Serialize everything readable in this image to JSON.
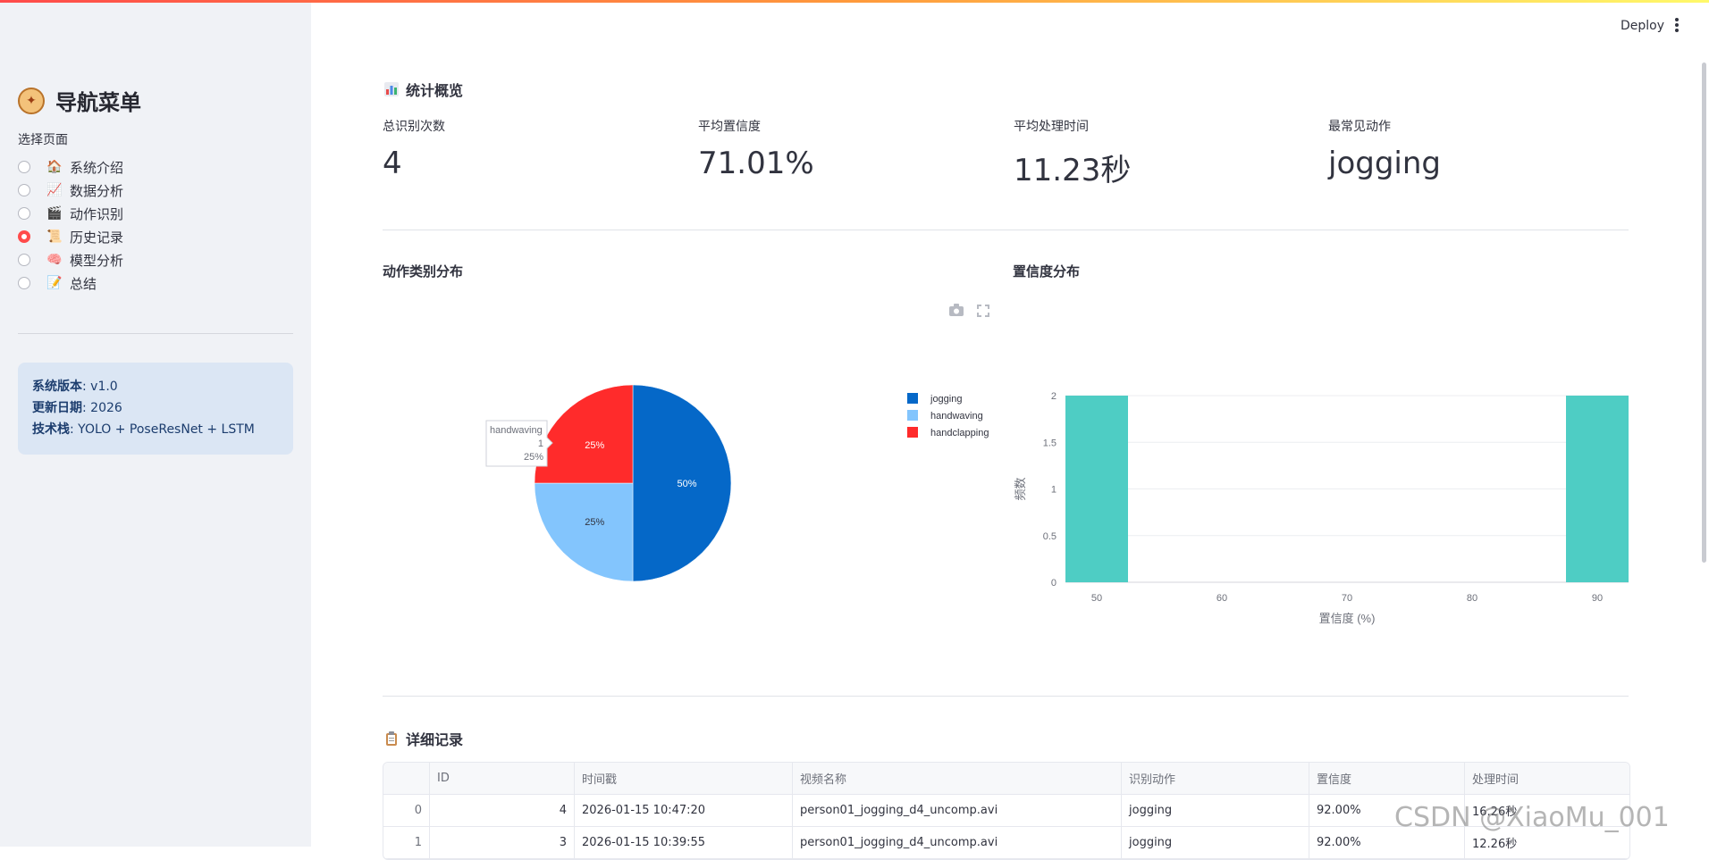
{
  "sidebar": {
    "title": "导航菜单",
    "select_label": "选择页面",
    "items": [
      {
        "label": "系统介绍",
        "icon": "house-icon",
        "emoji": "🏠",
        "selected": false
      },
      {
        "label": "数据分析",
        "icon": "chart-increasing-icon",
        "emoji": "📈",
        "selected": false
      },
      {
        "label": "动作识别",
        "icon": "clapper-board-icon",
        "emoji": "🎬",
        "selected": false
      },
      {
        "label": "历史记录",
        "icon": "scroll-icon",
        "emoji": "📜",
        "selected": true
      },
      {
        "label": "模型分析",
        "icon": "brain-icon",
        "emoji": "🧠",
        "selected": false
      },
      {
        "label": "总结",
        "icon": "memo-icon",
        "emoji": "📝",
        "selected": false
      }
    ],
    "info": {
      "version_key": "系统版本",
      "version_val": ": v1.0",
      "date_key": "更新日期",
      "date_val": ": 2026",
      "stack_key": "技术栈",
      "stack_val": ": YOLO + PoseResNet + LSTM"
    }
  },
  "header": {
    "deploy_label": "Deploy"
  },
  "stats": {
    "title": "统计概览",
    "metrics": [
      {
        "label": "总识别次数",
        "value": "4"
      },
      {
        "label": "平均置信度",
        "value": "71.01%"
      },
      {
        "label": "平均处理时间",
        "value": "11.23秒"
      },
      {
        "label": "最常见动作",
        "value": "jogging"
      }
    ]
  },
  "pie_title": "动作类别分布",
  "bar_title": "置信度分布",
  "pie_tooltip": {
    "name": "handwaving",
    "count": "1",
    "pct": "25%"
  },
  "chart_data": [
    {
      "type": "pie",
      "title": "动作类别分布",
      "labels": [
        "jogging",
        "handwaving",
        "handclapping"
      ],
      "values": [
        2,
        1,
        1
      ],
      "percent_labels": [
        "50%",
        "25%",
        "25%"
      ],
      "colors": [
        "#0568c8",
        "#83c5fd",
        "#ff2b2b"
      ],
      "legend": "right"
    },
    {
      "type": "bar",
      "title": "置信度分布",
      "xlabel": "置信度 (%)",
      "ylabel": "频数",
      "bins": [
        {
          "from": 47.5,
          "to": 52.5,
          "count": 2
        },
        {
          "from": 87.5,
          "to": 92.5,
          "count": 2
        }
      ],
      "x_ticks": [
        "50",
        "60",
        "70",
        "80",
        "90"
      ],
      "y_ticks": [
        "0",
        "0.5",
        "1",
        "1.5",
        "2"
      ],
      "xlim": [
        47.5,
        92.5
      ],
      "ylim": [
        0,
        2
      ],
      "color": "#4ecdc4",
      "grid": true
    }
  ],
  "records": {
    "title": "详细记录",
    "columns": [
      "",
      "ID",
      "时间戳",
      "视频名称",
      "识别动作",
      "置信度",
      "处理时间"
    ],
    "rows": [
      [
        "0",
        "4",
        "2026-01-15 10:47:20",
        "person01_jogging_d4_uncomp.avi",
        "jogging",
        "92.00%",
        "16.26秒"
      ],
      [
        "1",
        "3",
        "2026-01-15 10:39:55",
        "person01_jogging_d4_uncomp.avi",
        "jogging",
        "92.00%",
        "12.26秒"
      ]
    ]
  },
  "watermark": "CSDN @XiaoMu_001"
}
